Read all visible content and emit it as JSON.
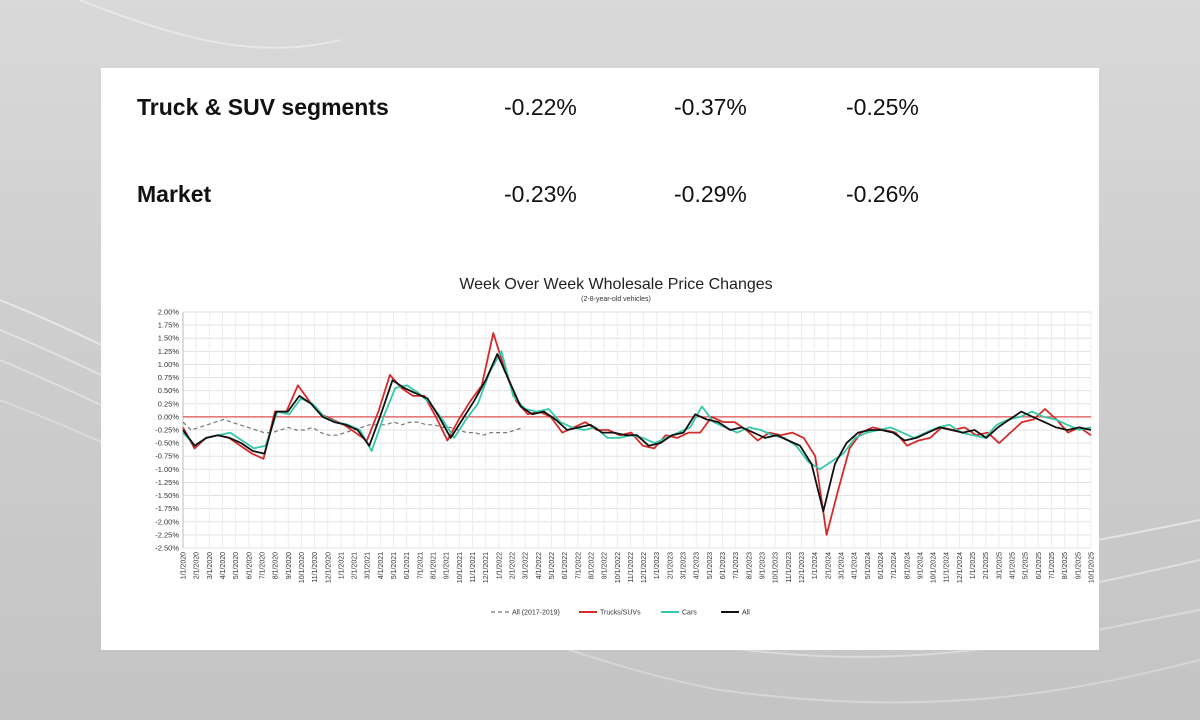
{
  "summary_rows": [
    {
      "label": "Truck & SUV segments",
      "values": [
        "-0.22%",
        "-0.37%",
        "-0.25%"
      ]
    },
    {
      "label": "Market",
      "values": [
        "-0.23%",
        "-0.29%",
        "-0.26%"
      ]
    }
  ],
  "chart_data": {
    "type": "line",
    "title": "Week Over Week Wholesale Price Changes",
    "subtitle": "(2-8-year-old vehicles)",
    "xlabel": "",
    "ylabel": "",
    "ylim": [
      -2.5,
      2.0
    ],
    "y_tick_step": 0.25,
    "y_tick_labels": [
      "2.00%",
      "1.75%",
      "1.50%",
      "1.25%",
      "1.00%",
      "0.75%",
      "0.50%",
      "0.25%",
      "0.00%",
      "-0.25%",
      "-0.50%",
      "-0.75%",
      "-1.00%",
      "-1.25%",
      "-1.50%",
      "-1.75%",
      "-2.00%",
      "-2.25%",
      "-2.50%"
    ],
    "x_tick_labels": [
      "1/1/2020",
      "2/1/2020",
      "3/1/2020",
      "4/1/2020",
      "5/1/2020",
      "6/1/2020",
      "7/1/2020",
      "8/1/2020",
      "9/1/2020",
      "10/1/2020",
      "11/1/2020",
      "12/1/2020",
      "1/1/2021",
      "2/1/2021",
      "3/1/2021",
      "4/1/2021",
      "5/1/2021",
      "6/1/2021",
      "7/1/2021",
      "8/1/2021",
      "9/1/2021",
      "10/1/2021",
      "11/1/2021",
      "12/1/2021",
      "1/1/2022",
      "2/1/2022",
      "3/1/2022",
      "4/1/2022",
      "5/1/2022",
      "6/1/2022",
      "7/1/2022",
      "8/1/2022",
      "9/1/2022",
      "10/1/2022",
      "11/1/2022",
      "12/1/2022",
      "1/1/2023",
      "2/1/2023",
      "3/1/2023",
      "4/1/2023",
      "5/1/2023",
      "6/1/2023",
      "7/1/2023",
      "8/1/2023",
      "9/1/2023",
      "10/1/2023",
      "11/1/2023",
      "12/1/2023",
      "1/1/2024",
      "2/1/2024",
      "3/1/2024",
      "4/1/2024",
      "5/1/2024",
      "6/1/2024",
      "7/1/2024",
      "8/1/2024",
      "9/1/2024",
      "10/1/2024",
      "11/1/2024",
      "12/1/2024",
      "1/1/2025",
      "2/1/2025",
      "3/1/2025",
      "4/1/2025",
      "5/1/2025",
      "6/1/2025",
      "7/1/2025",
      "8/1/2025",
      "9/1/2025",
      "10/1/2025"
    ],
    "grid": true,
    "legend": "bottom",
    "zero_line_color": "#e05050",
    "series": [
      {
        "name": "All (2017-2019)",
        "color": "#777777",
        "dashed": true,
        "values": [
          -0.1,
          -0.25,
          -0.2,
          -0.15,
          -0.1,
          -0.05,
          -0.1,
          -0.15,
          -0.2,
          -0.25,
          -0.3,
          -0.3,
          -0.25,
          -0.2,
          -0.25,
          -0.25,
          -0.2,
          -0.3,
          -0.35,
          -0.35,
          -0.3,
          -0.25,
          -0.2,
          -0.15,
          -0.15,
          -0.15,
          -0.1,
          -0.15,
          -0.1,
          -0.1,
          -0.15,
          -0.15,
          -0.2,
          -0.2,
          -0.25,
          -0.3,
          -0.3,
          -0.35,
          -0.3,
          -0.3,
          -0.3,
          -0.25,
          -0.2
        ]
      },
      {
        "name": "Trucks/SUVs",
        "color": "#d62a2a",
        "values": [
          -0.2,
          -0.6,
          -0.4,
          -0.35,
          -0.4,
          -0.55,
          -0.7,
          -0.8,
          0.1,
          0.1,
          0.6,
          0.3,
          0.05,
          -0.05,
          -0.15,
          -0.3,
          -0.45,
          0.1,
          0.8,
          0.55,
          0.4,
          0.4,
          0.0,
          -0.45,
          -0.05,
          0.3,
          0.6,
          1.6,
          0.9,
          0.3,
          0.05,
          0.1,
          0.0,
          -0.3,
          -0.2,
          -0.1,
          -0.25,
          -0.25,
          -0.35,
          -0.3,
          -0.55,
          -0.6,
          -0.35,
          -0.4,
          -0.3,
          -0.3,
          0.0,
          -0.1,
          -0.1,
          -0.25,
          -0.45,
          -0.3,
          -0.35,
          -0.3,
          -0.4,
          -0.75,
          -2.25,
          -1.4,
          -0.6,
          -0.3,
          -0.2,
          -0.25,
          -0.3,
          -0.55,
          -0.45,
          -0.4,
          -0.2,
          -0.25,
          -0.2,
          -0.35,
          -0.3,
          -0.5,
          -0.3,
          -0.1,
          -0.05,
          0.15,
          -0.05,
          -0.3,
          -0.2,
          -0.35
        ]
      },
      {
        "name": "Cars",
        "color": "#35c9a9",
        "values": [
          -0.3,
          -0.55,
          -0.4,
          -0.35,
          -0.3,
          -0.45,
          -0.6,
          -0.55,
          0.1,
          0.05,
          0.35,
          0.25,
          0.0,
          -0.1,
          -0.15,
          -0.25,
          -0.65,
          0.0,
          0.55,
          0.6,
          0.45,
          0.25,
          -0.05,
          -0.4,
          -0.05,
          0.25,
          0.85,
          1.25,
          0.4,
          0.15,
          0.1,
          0.15,
          -0.1,
          -0.2,
          -0.25,
          -0.2,
          -0.4,
          -0.4,
          -0.35,
          -0.4,
          -0.5,
          -0.4,
          -0.3,
          -0.2,
          0.2,
          -0.1,
          -0.2,
          -0.3,
          -0.2,
          -0.25,
          -0.35,
          -0.4,
          -0.55,
          -0.85,
          -1.0,
          -0.85,
          -0.7,
          -0.4,
          -0.3,
          -0.25,
          -0.2,
          -0.3,
          -0.4,
          -0.3,
          -0.2,
          -0.15,
          -0.3,
          -0.35,
          -0.4,
          -0.15,
          -0.05,
          0.0,
          0.1,
          0.0,
          -0.05,
          -0.15,
          -0.25,
          -0.2
        ]
      },
      {
        "name": "All",
        "color": "#111111",
        "values": [
          -0.25,
          -0.55,
          -0.4,
          -0.35,
          -0.4,
          -0.5,
          -0.65,
          -0.7,
          0.1,
          0.1,
          0.4,
          0.25,
          0.0,
          -0.1,
          -0.15,
          -0.25,
          -0.55,
          0.05,
          0.7,
          0.55,
          0.45,
          0.35,
          0.0,
          -0.4,
          -0.05,
          0.3,
          0.7,
          1.2,
          0.7,
          0.2,
          0.05,
          0.1,
          -0.05,
          -0.25,
          -0.2,
          -0.15,
          -0.3,
          -0.3,
          -0.35,
          -0.35,
          -0.55,
          -0.5,
          -0.35,
          -0.3,
          0.05,
          -0.05,
          -0.1,
          -0.25,
          -0.2,
          -0.3,
          -0.4,
          -0.35,
          -0.45,
          -0.55,
          -0.9,
          -1.8,
          -0.9,
          -0.5,
          -0.3,
          -0.25,
          -0.25,
          -0.3,
          -0.45,
          -0.4,
          -0.3,
          -0.2,
          -0.25,
          -0.3,
          -0.25,
          -0.4,
          -0.2,
          -0.05,
          0.1,
          0.0,
          -0.1,
          -0.2,
          -0.25,
          -0.2,
          -0.25
        ]
      }
    ]
  }
}
